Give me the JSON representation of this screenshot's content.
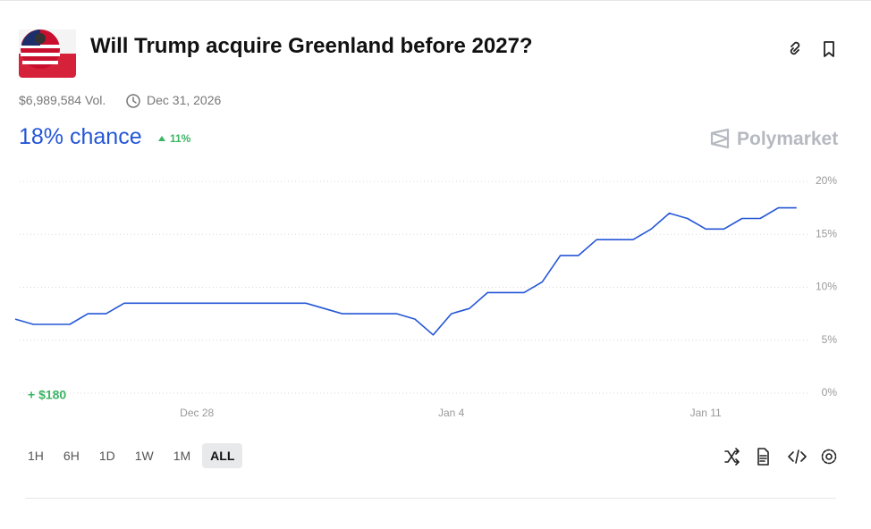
{
  "header": {
    "title": "Will Trump acquire Greenland before 2027?",
    "volume": "$6,989,584 Vol.",
    "end_date": "Dec 31, 2026",
    "chance": "18% chance",
    "change": "11%",
    "brand": "Polymarket"
  },
  "chart_data": {
    "type": "line",
    "color": "#2456d6",
    "grid": true,
    "annotation": "+ $180",
    "categories": [
      null,
      null,
      null,
      null,
      null,
      null,
      null,
      null,
      null,
      null,
      "Dec 28",
      null,
      null,
      null,
      null,
      null,
      null,
      null,
      null,
      null,
      null,
      null,
      null,
      null,
      "Jan 4",
      null,
      null,
      null,
      null,
      null,
      null,
      null,
      null,
      null,
      null,
      null,
      null,
      null,
      "Jan 11",
      null,
      null,
      null,
      null,
      null
    ],
    "values": [
      7,
      6.5,
      6.5,
      6.5,
      7.5,
      7.5,
      8.5,
      8.5,
      8.5,
      8.5,
      8.5,
      8.5,
      8.5,
      8.5,
      8.5,
      8.5,
      8.5,
      8,
      7.5,
      7.5,
      7.5,
      7.5,
      7,
      5.5,
      7.5,
      8,
      9.5,
      9.5,
      9.5,
      10.5,
      13,
      13,
      14.5,
      14.5,
      14.5,
      15.5,
      17,
      16.5,
      15.5,
      15.5,
      16.5,
      16.5,
      17.5,
      17.5
    ],
    "ylim": [
      0,
      20
    ],
    "yticks": [
      {
        "value": 0,
        "label": "0%"
      },
      {
        "value": 5,
        "label": "5%"
      },
      {
        "value": 10,
        "label": "10%"
      },
      {
        "value": 15,
        "label": "15%"
      },
      {
        "value": 20,
        "label": "20%"
      }
    ]
  },
  "controls": {
    "ranges": [
      "1H",
      "6H",
      "1D",
      "1W",
      "1M",
      "ALL"
    ],
    "active": "ALL"
  }
}
